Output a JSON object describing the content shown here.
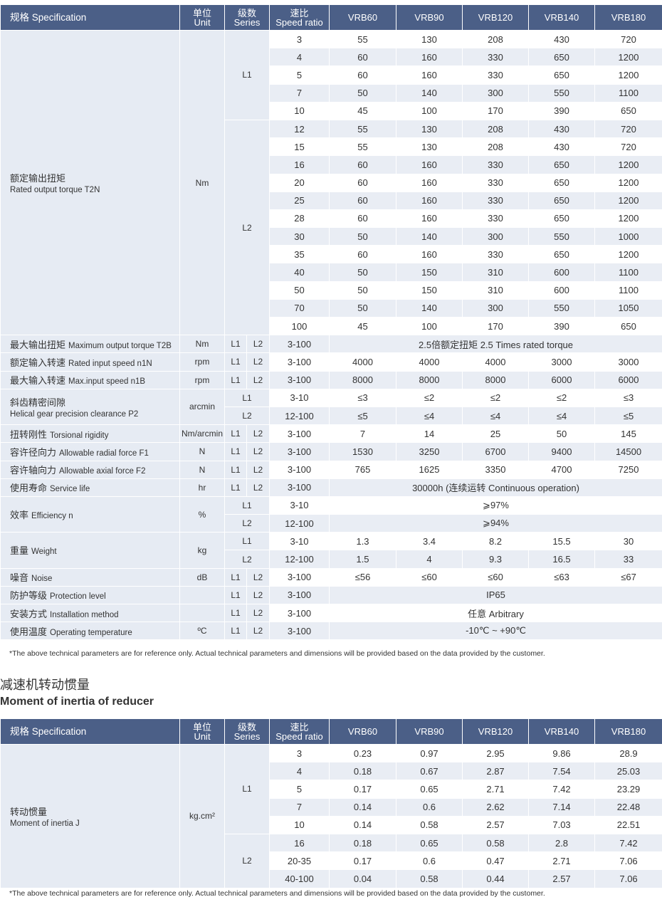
{
  "table1": {
    "header": {
      "spec": "规格 Specification",
      "unit": [
        "单位",
        "Unit"
      ],
      "series": [
        "级数",
        "Series"
      ],
      "ratio": [
        "速比",
        "Speed ratio"
      ],
      "models": [
        "VRB60",
        "VRB90",
        "VRB120",
        "VRB140",
        "VRB180"
      ]
    },
    "blocks": [
      {
        "label": [
          "额定输出扭矩",
          "Rated output torque T2N"
        ],
        "unit": "Nm",
        "groups": [
          {
            "series": [
              "L1"
            ],
            "rows": [
              {
                "ratio": 3,
                "values": [
                  55,
                  130,
                  208,
                  430,
                  720
                ]
              },
              {
                "ratio": 4,
                "values": [
                  60,
                  160,
                  330,
                  650,
                  1200
                ]
              },
              {
                "ratio": 5,
                "values": [
                  60,
                  160,
                  330,
                  650,
                  1200
                ]
              },
              {
                "ratio": 7,
                "values": [
                  50,
                  140,
                  300,
                  550,
                  1100
                ]
              },
              {
                "ratio": 10,
                "values": [
                  45,
                  100,
                  170,
                  390,
                  650
                ]
              }
            ]
          },
          {
            "series": [
              "L2"
            ],
            "rows": [
              {
                "ratio": 12,
                "values": [
                  55,
                  130,
                  208,
                  430,
                  720
                ]
              },
              {
                "ratio": 15,
                "values": [
                  55,
                  130,
                  208,
                  430,
                  720
                ]
              },
              {
                "ratio": 16,
                "values": [
                  60,
                  160,
                  330,
                  650,
                  1200
                ]
              },
              {
                "ratio": 20,
                "values": [
                  60,
                  160,
                  330,
                  650,
                  1200
                ]
              },
              {
                "ratio": 25,
                "values": [
                  60,
                  160,
                  330,
                  650,
                  1200
                ]
              },
              {
                "ratio": 28,
                "values": [
                  60,
                  160,
                  330,
                  650,
                  1200
                ]
              },
              {
                "ratio": 30,
                "values": [
                  50,
                  140,
                  300,
                  550,
                  1000
                ]
              },
              {
                "ratio": 35,
                "values": [
                  60,
                  160,
                  330,
                  650,
                  1200
                ]
              },
              {
                "ratio": 40,
                "values": [
                  50,
                  150,
                  310,
                  600,
                  1100
                ]
              },
              {
                "ratio": 50,
                "values": [
                  50,
                  150,
                  310,
                  600,
                  1100
                ]
              },
              {
                "ratio": 70,
                "values": [
                  50,
                  140,
                  300,
                  550,
                  1050
                ]
              },
              {
                "ratio": 100,
                "values": [
                  45,
                  100,
                  170,
                  390,
                  650
                ]
              }
            ]
          }
        ]
      },
      {
        "label": [
          "最大输出扭矩",
          "Maximum output torque T2B"
        ],
        "unit": "Nm",
        "groups": [
          {
            "series": [
              "L1",
              "L2"
            ],
            "rows": [
              {
                "ratio": "3-100",
                "text": "2.5倍额定扭矩 2.5 Times rated torque"
              }
            ]
          }
        ]
      },
      {
        "label": [
          "额定输入转速",
          "Rated input speed n1N"
        ],
        "unit": "rpm",
        "groups": [
          {
            "series": [
              "L1",
              "L2"
            ],
            "rows": [
              {
                "ratio": "3-100",
                "values": [
                  4000,
                  4000,
                  4000,
                  3000,
                  3000
                ]
              }
            ]
          }
        ]
      },
      {
        "label": [
          "最大输入转速",
          "Max.input speed n1B"
        ],
        "unit": "rpm",
        "groups": [
          {
            "series": [
              "L1",
              "L2"
            ],
            "rows": [
              {
                "ratio": "3-100",
                "values": [
                  8000,
                  8000,
                  8000,
                  6000,
                  6000
                ]
              }
            ]
          }
        ]
      },
      {
        "label": [
          "斜齿精密间隙",
          "Helical gear precision clearance P2"
        ],
        "unit": "arcmin",
        "groups": [
          {
            "series": [
              "L1"
            ],
            "rows": [
              {
                "ratio": "3-10",
                "values": [
                  "≤3",
                  "≤2",
                  "≤2",
                  "≤2",
                  "≤3"
                ]
              }
            ]
          },
          {
            "series": [
              "L2"
            ],
            "rows": [
              {
                "ratio": "12-100",
                "values": [
                  "≤5",
                  "≤4",
                  "≤4",
                  "≤4",
                  "≤5"
                ]
              }
            ]
          }
        ]
      },
      {
        "label": [
          "扭转刚性",
          "Torsional rigidity"
        ],
        "unit": "Nm/arcmin",
        "groups": [
          {
            "series": [
              "L1",
              "L2"
            ],
            "rows": [
              {
                "ratio": "3-100",
                "values": [
                  7,
                  14,
                  25,
                  50,
                  145
                ]
              }
            ]
          }
        ]
      },
      {
        "label": [
          "容许径向力",
          "Allowable radial force F1"
        ],
        "unit": "N",
        "groups": [
          {
            "series": [
              "L1",
              "L2"
            ],
            "rows": [
              {
                "ratio": "3-100",
                "values": [
                  1530,
                  3250,
                  6700,
                  9400,
                  14500
                ]
              }
            ]
          }
        ]
      },
      {
        "label": [
          "容许轴向力",
          "Allowable axial force F2"
        ],
        "unit": "N",
        "groups": [
          {
            "series": [
              "L1",
              "L2"
            ],
            "rows": [
              {
                "ratio": "3-100",
                "values": [
                  765,
                  1625,
                  3350,
                  4700,
                  7250
                ]
              }
            ]
          }
        ]
      },
      {
        "label": [
          "使用寿命",
          "Service life"
        ],
        "unit": "hr",
        "groups": [
          {
            "series": [
              "L1",
              "L2"
            ],
            "rows": [
              {
                "ratio": "3-100",
                "text": "30000h (连续运转 Continuous operation)"
              }
            ]
          }
        ]
      },
      {
        "label": [
          "效率",
          "Efficiency n"
        ],
        "unit": "%",
        "groups": [
          {
            "series": [
              "L1"
            ],
            "rows": [
              {
                "ratio": "3-10",
                "text": "⩾97%"
              }
            ]
          },
          {
            "series": [
              "L2"
            ],
            "rows": [
              {
                "ratio": "12-100",
                "text": "⩾94%"
              }
            ]
          }
        ]
      },
      {
        "label": [
          "重量",
          "Weight"
        ],
        "unit": "kg",
        "groups": [
          {
            "series": [
              "L1"
            ],
            "rows": [
              {
                "ratio": "3-10",
                "values": [
                  1.3,
                  3.4,
                  8.2,
                  15.5,
                  30
                ]
              }
            ]
          },
          {
            "series": [
              "L2"
            ],
            "rows": [
              {
                "ratio": "12-100",
                "values": [
                  1.5,
                  4,
                  9.3,
                  16.5,
                  33
                ]
              }
            ]
          }
        ]
      },
      {
        "label": [
          "噪音",
          "Noise"
        ],
        "unit": "dB",
        "groups": [
          {
            "series": [
              "L1",
              "L2"
            ],
            "rows": [
              {
                "ratio": "3-100",
                "values": [
                  "≤56",
                  "≤60",
                  "≤60",
                  "≤63",
                  "≤67"
                ]
              }
            ]
          }
        ]
      },
      {
        "label": [
          "防护等级",
          "Protection level"
        ],
        "groups": [
          {
            "series": [
              "L1",
              "L2"
            ],
            "rows": [
              {
                "ratio": "3-100",
                "text": "IP65"
              }
            ]
          }
        ]
      },
      {
        "label": [
          "安装方式",
          "Installation method"
        ],
        "groups": [
          {
            "series": [
              "L1",
              "L2"
            ],
            "rows": [
              {
                "ratio": "3-100",
                "text": "任意 Arbitrary"
              }
            ]
          }
        ]
      },
      {
        "label": [
          "使用温度",
          "Operating temperature"
        ],
        "unit": "ºC",
        "groups": [
          {
            "series": [
              "L1",
              "L2"
            ],
            "rows": [
              {
                "ratio": "3-100",
                "text": "-10℃ ~ +90℃"
              }
            ]
          }
        ]
      }
    ]
  },
  "note1": "*The above technical parameters are for reference only. Actual technical parameters and dimensions will be provided based on the data provided by the customer.",
  "section_title": [
    "减速机转动惯量",
    "Moment of inertia of reducer"
  ],
  "table2": {
    "header": {
      "spec": "规格 Specification",
      "unit": [
        "单位",
        "Unit"
      ],
      "series": [
        "级数",
        "Series"
      ],
      "ratio": [
        "速比",
        "Speed ratio"
      ],
      "models": [
        "VRB60",
        "VRB90",
        "VRB120",
        "VRB140",
        "VRB180"
      ]
    },
    "blocks": [
      {
        "label": [
          "转动惯量",
          "Moment of inertia J"
        ],
        "unit": "kg.cm²",
        "groups": [
          {
            "series": [
              "L1"
            ],
            "rows": [
              {
                "ratio": 3,
                "values": [
                  0.23,
                  0.97,
                  2.95,
                  9.86,
                  28.9
                ]
              },
              {
                "ratio": 4,
                "values": [
                  0.18,
                  0.67,
                  2.87,
                  7.54,
                  25.03
                ]
              },
              {
                "ratio": 5,
                "values": [
                  0.17,
                  0.65,
                  2.71,
                  7.42,
                  23.29
                ]
              },
              {
                "ratio": 7,
                "values": [
                  0.14,
                  0.6,
                  2.62,
                  7.14,
                  22.48
                ]
              },
              {
                "ratio": 10,
                "values": [
                  0.14,
                  0.58,
                  2.57,
                  7.03,
                  22.51
                ]
              }
            ]
          },
          {
            "series": [
              "L2"
            ],
            "rows": [
              {
                "ratio": 16,
                "values": [
                  0.18,
                  0.65,
                  0.58,
                  2.8,
                  7.42
                ]
              },
              {
                "ratio": "20-35",
                "values": [
                  0.17,
                  0.6,
                  0.47,
                  2.71,
                  7.06
                ]
              },
              {
                "ratio": "40-100",
                "values": [
                  0.04,
                  0.58,
                  0.44,
                  2.57,
                  7.06
                ]
              }
            ]
          }
        ]
      }
    ]
  },
  "note2": "*The above technical parameters are for reference only. Actual technical parameters and dimensions will be provided based on the data provided by the customer."
}
